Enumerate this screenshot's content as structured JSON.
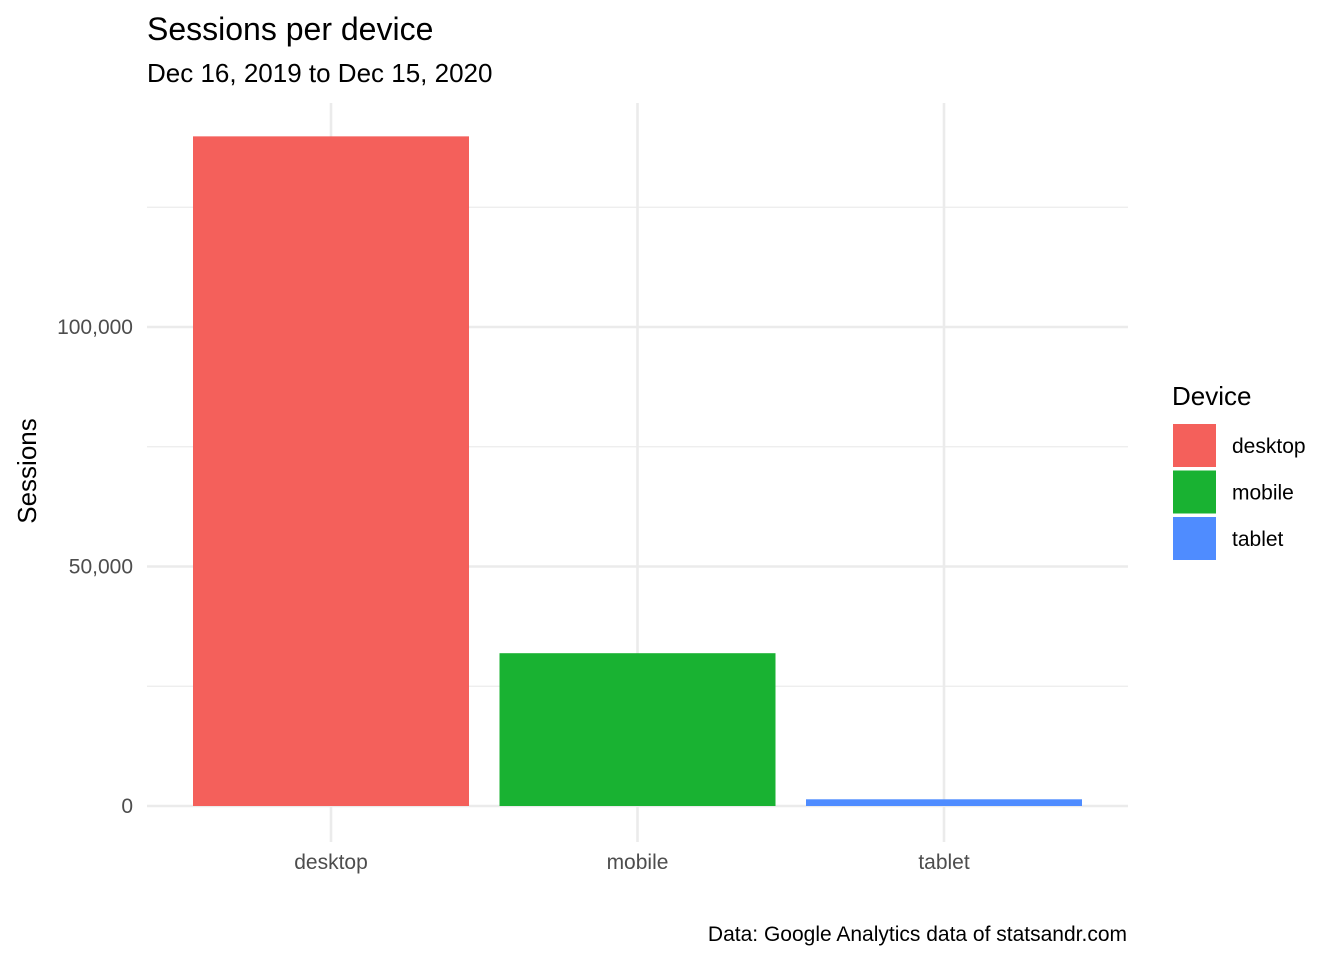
{
  "chart_data": {
    "type": "bar",
    "title": "Sessions per device",
    "subtitle": "Dec 16, 2019 to Dec 15, 2020",
    "xlabel": "",
    "ylabel": "Sessions",
    "caption": "Data: Google Analytics data of statsandr.com",
    "categories": [
      "desktop",
      "mobile",
      "tablet"
    ],
    "values": [
      139800,
      31900,
      1400
    ],
    "colors": [
      "#F8766D",
      "#00BA38",
      "#619CFF"
    ],
    "bar_colors_rendered": [
      "#f4605b",
      "#19b232",
      "#4f8cff"
    ],
    "ylim": [
      0,
      145000
    ],
    "y_major_ticks": [
      0,
      50000,
      100000
    ],
    "y_major_tick_labels": [
      "0",
      "50,000",
      "100,000"
    ],
    "y_minor_ticks": [
      25000,
      75000,
      125000
    ],
    "grid": true,
    "legend": {
      "title": "Device",
      "position": "right",
      "entries": [
        "desktop",
        "mobile",
        "tablet"
      ]
    }
  }
}
